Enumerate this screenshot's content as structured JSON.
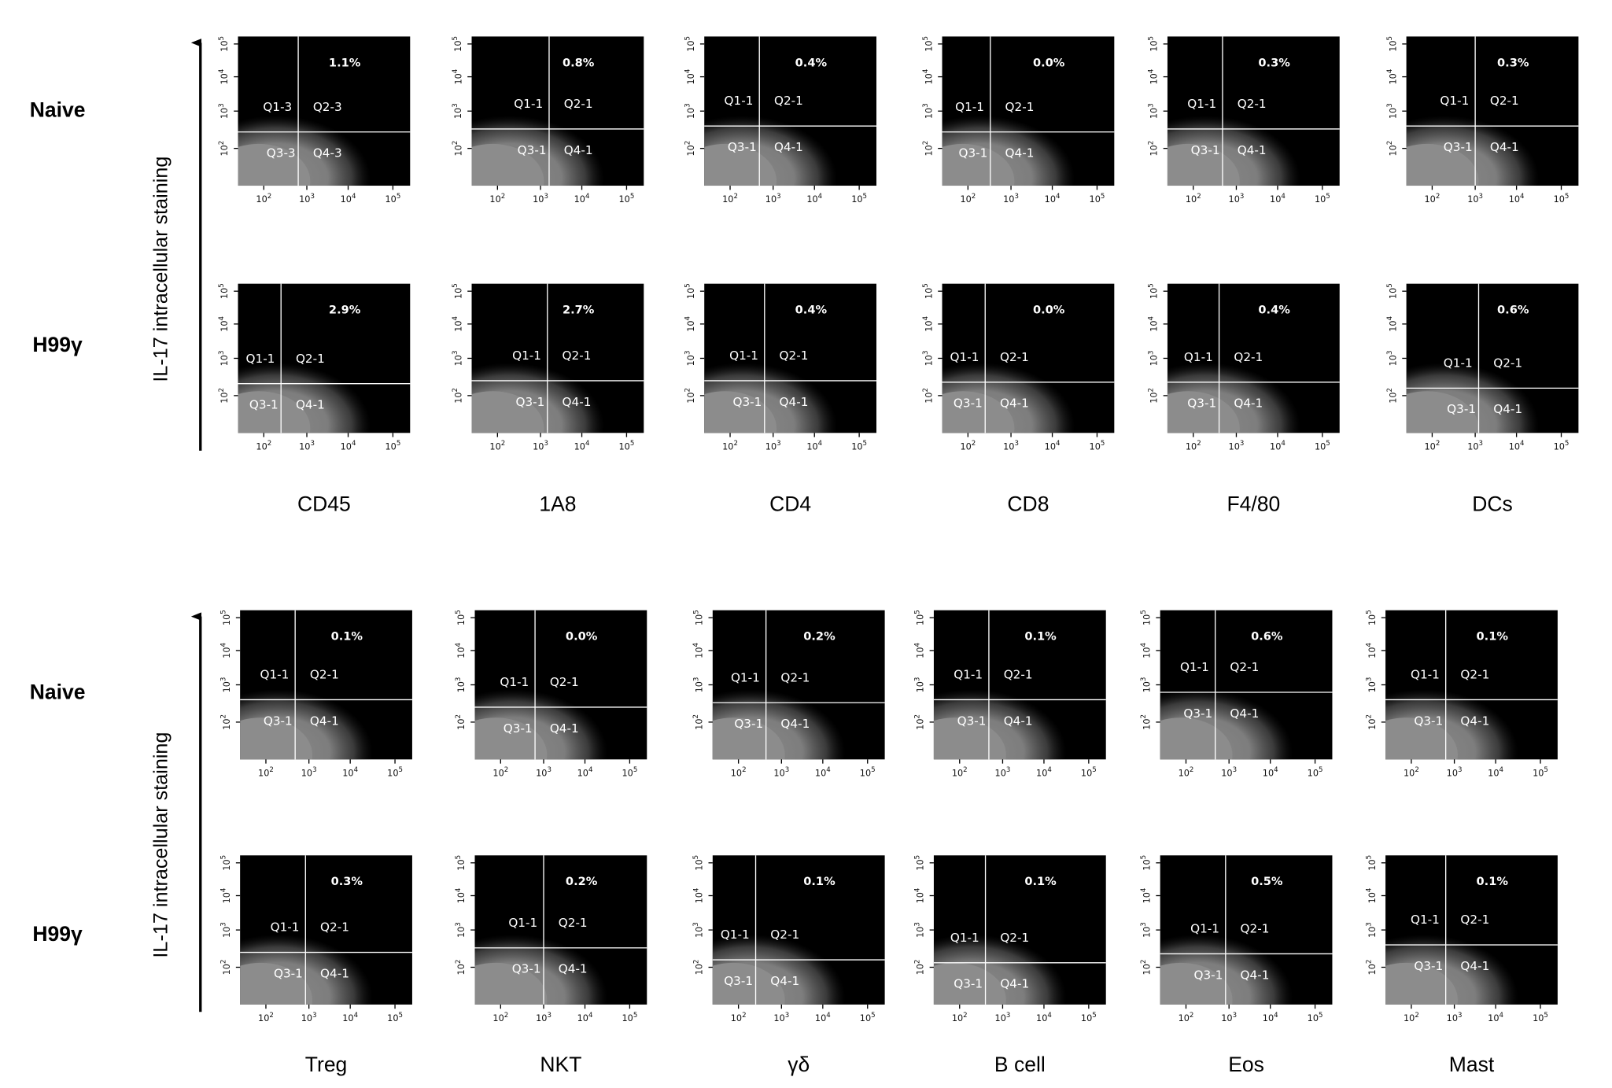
{
  "axis_label": "IL-17 intracellular staining",
  "tick_base": "10",
  "tick_exponents": [
    "2",
    "3",
    "4",
    "5"
  ],
  "blocks": [
    {
      "columns": [
        "CD45",
        "1A8",
        "CD4",
        "CD8",
        "F4/80",
        "DCs"
      ],
      "rows": [
        {
          "label": "Naive",
          "panels": [
            {
              "pct": "1.1%",
              "quadrants": [
                "Q1-3",
                "Q2-3",
                "Q3-3",
                "Q4-3"
              ]
            },
            {
              "pct": "0.8%",
              "quadrants": [
                "Q1-1",
                "Q2-1",
                "Q3-1",
                "Q4-1"
              ]
            },
            {
              "pct": "0.4%",
              "quadrants": [
                "Q1-1",
                "Q2-1",
                "Q3-1",
                "Q4-1"
              ]
            },
            {
              "pct": "0.0%",
              "quadrants": [
                "Q1-1",
                "Q2-1",
                "Q3-1",
                "Q4-1"
              ]
            },
            {
              "pct": "0.3%",
              "quadrants": [
                "Q1-1",
                "Q2-1",
                "Q3-1",
                "Q4-1"
              ]
            },
            {
              "pct": "0.3%",
              "quadrants": [
                "Q1-1",
                "Q2-1",
                "Q3-1",
                "Q4-1"
              ]
            }
          ]
        },
        {
          "label": "H99γ",
          "panels": [
            {
              "pct": "2.9%",
              "quadrants": [
                "Q1-1",
                "Q2-1",
                "Q3-1",
                "Q4-1"
              ]
            },
            {
              "pct": "2.7%",
              "quadrants": [
                "Q1-1",
                "Q2-1",
                "Q3-1",
                "Q4-1"
              ]
            },
            {
              "pct": "0.4%",
              "quadrants": [
                "Q1-1",
                "Q2-1",
                "Q3-1",
                "Q4-1"
              ]
            },
            {
              "pct": "0.0%",
              "quadrants": [
                "Q1-1",
                "Q2-1",
                "Q3-1",
                "Q4-1"
              ]
            },
            {
              "pct": "0.4%",
              "quadrants": [
                "Q1-1",
                "Q2-1",
                "Q3-1",
                "Q4-1"
              ]
            },
            {
              "pct": "0.6%",
              "quadrants": [
                "Q1-1",
                "Q2-1",
                "Q3-1",
                "Q4-1"
              ]
            }
          ]
        }
      ]
    },
    {
      "columns": [
        "Treg",
        "NKT",
        "γδ",
        "B cell",
        "Eos",
        "Mast"
      ],
      "rows": [
        {
          "label": "Naive",
          "panels": [
            {
              "pct": "0.1%",
              "quadrants": [
                "Q1-1",
                "Q2-1",
                "Q3-1",
                "Q4-1"
              ]
            },
            {
              "pct": "0.0%",
              "quadrants": [
                "Q1-1",
                "Q2-1",
                "Q3-1",
                "Q4-1"
              ]
            },
            {
              "pct": "0.2%",
              "quadrants": [
                "Q1-1",
                "Q2-1",
                "Q3-1",
                "Q4-1"
              ]
            },
            {
              "pct": "0.1%",
              "quadrants": [
                "Q1-1",
                "Q2-1",
                "Q3-1",
                "Q4-1"
              ]
            },
            {
              "pct": "0.6%",
              "quadrants": [
                "Q1-1",
                "Q2-1",
                "Q3-1",
                "Q4-1"
              ]
            },
            {
              "pct": "0.1%",
              "quadrants": [
                "Q1-1",
                "Q2-1",
                "Q3-1",
                "Q4-1"
              ]
            }
          ]
        },
        {
          "label": "H99γ",
          "panels": [
            {
              "pct": "0.3%",
              "quadrants": [
                "Q1-1",
                "Q2-1",
                "Q3-1",
                "Q4-1"
              ]
            },
            {
              "pct": "0.2%",
              "quadrants": [
                "Q1-1",
                "Q2-1",
                "Q3-1",
                "Q4-1"
              ]
            },
            {
              "pct": "0.1%",
              "quadrants": [
                "Q1-1",
                "Q2-1",
                "Q3-1",
                "Q4-1"
              ]
            },
            {
              "pct": "0.1%",
              "quadrants": [
                "Q1-1",
                "Q2-1",
                "Q3-1",
                "Q4-1"
              ]
            },
            {
              "pct": "0.5%",
              "quadrants": [
                "Q1-1",
                "Q2-1",
                "Q3-1",
                "Q4-1"
              ]
            },
            {
              "pct": "0.1%",
              "quadrants": [
                "Q1-1",
                "Q2-1",
                "Q3-1",
                "Q4-1"
              ]
            }
          ]
        }
      ]
    }
  ]
}
